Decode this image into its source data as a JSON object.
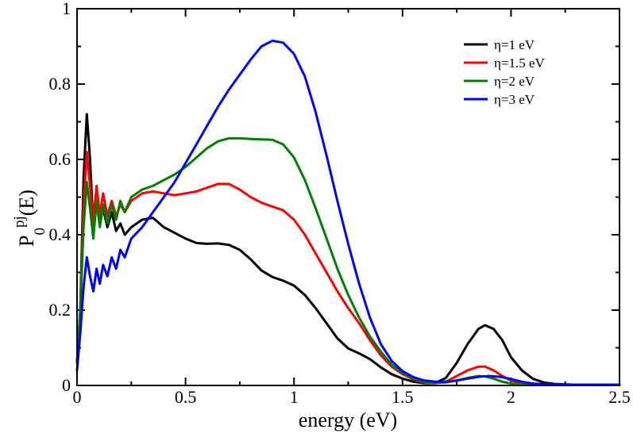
{
  "chart_data": {
    "type": "line",
    "title": "",
    "xlabel": "energy (eV)",
    "ylabel": {
      "base": "P",
      "sub": "0",
      "sup": "pj",
      "arg": "(E)"
    },
    "xlim": [
      0,
      2.5
    ],
    "ylim": [
      0,
      1
    ],
    "xticks": [
      0,
      0.5,
      1,
      1.5,
      2,
      2.5
    ],
    "xtick_labels": [
      "0",
      "0.5",
      "1",
      "1.5",
      "2",
      "2.5"
    ],
    "yticks": [
      0,
      0.2,
      0.4,
      0.6,
      0.8,
      1
    ],
    "ytick_labels": [
      "0",
      "0.2",
      "0.4",
      "0.6",
      "0.8",
      "1"
    ],
    "grid": false,
    "legend_position": "top-right",
    "series": [
      {
        "name": "η=1 eV",
        "color": "#000000",
        "points": [
          [
            0,
            0.06
          ],
          [
            0.015,
            0.2
          ],
          [
            0.03,
            0.55
          ],
          [
            0.045,
            0.72
          ],
          [
            0.06,
            0.6
          ],
          [
            0.075,
            0.42
          ],
          [
            0.09,
            0.48
          ],
          [
            0.105,
            0.43
          ],
          [
            0.12,
            0.47
          ],
          [
            0.14,
            0.42
          ],
          [
            0.16,
            0.46
          ],
          [
            0.18,
            0.41
          ],
          [
            0.2,
            0.43
          ],
          [
            0.22,
            0.4
          ],
          [
            0.25,
            0.42
          ],
          [
            0.3,
            0.44
          ],
          [
            0.35,
            0.445
          ],
          [
            0.4,
            0.42
          ],
          [
            0.45,
            0.405
          ],
          [
            0.5,
            0.39
          ],
          [
            0.55,
            0.378
          ],
          [
            0.6,
            0.376
          ],
          [
            0.65,
            0.377
          ],
          [
            0.7,
            0.373
          ],
          [
            0.75,
            0.36
          ],
          [
            0.8,
            0.335
          ],
          [
            0.85,
            0.305
          ],
          [
            0.9,
            0.288
          ],
          [
            0.95,
            0.278
          ],
          [
            1.0,
            0.265
          ],
          [
            1.05,
            0.24
          ],
          [
            1.1,
            0.205
          ],
          [
            1.15,
            0.165
          ],
          [
            1.2,
            0.125
          ],
          [
            1.25,
            0.098
          ],
          [
            1.3,
            0.085
          ],
          [
            1.35,
            0.07
          ],
          [
            1.4,
            0.048
          ],
          [
            1.45,
            0.03
          ],
          [
            1.5,
            0.018
          ],
          [
            1.55,
            0.01
          ],
          [
            1.6,
            0.006
          ],
          [
            1.65,
            0.006
          ],
          [
            1.7,
            0.02
          ],
          [
            1.75,
            0.06
          ],
          [
            1.8,
            0.11
          ],
          [
            1.85,
            0.15
          ],
          [
            1.88,
            0.16
          ],
          [
            1.92,
            0.15
          ],
          [
            1.96,
            0.12
          ],
          [
            2.0,
            0.075
          ],
          [
            2.05,
            0.04
          ],
          [
            2.1,
            0.018
          ],
          [
            2.15,
            0.008
          ],
          [
            2.2,
            0.004
          ],
          [
            2.3,
            0.002
          ],
          [
            2.4,
            0.002
          ],
          [
            2.5,
            0.002
          ]
        ]
      },
      {
        "name": "η=1.5 eV",
        "color": "#ff0000",
        "points": [
          [
            0,
            0.06
          ],
          [
            0.015,
            0.2
          ],
          [
            0.03,
            0.48
          ],
          [
            0.045,
            0.62
          ],
          [
            0.06,
            0.53
          ],
          [
            0.075,
            0.43
          ],
          [
            0.09,
            0.53
          ],
          [
            0.105,
            0.45
          ],
          [
            0.12,
            0.51
          ],
          [
            0.14,
            0.45
          ],
          [
            0.16,
            0.49
          ],
          [
            0.18,
            0.45
          ],
          [
            0.2,
            0.48
          ],
          [
            0.22,
            0.46
          ],
          [
            0.25,
            0.49
          ],
          [
            0.3,
            0.51
          ],
          [
            0.35,
            0.515
          ],
          [
            0.4,
            0.51
          ],
          [
            0.45,
            0.505
          ],
          [
            0.5,
            0.51
          ],
          [
            0.55,
            0.515
          ],
          [
            0.6,
            0.525
          ],
          [
            0.65,
            0.535
          ],
          [
            0.7,
            0.535
          ],
          [
            0.75,
            0.52
          ],
          [
            0.8,
            0.5
          ],
          [
            0.85,
            0.485
          ],
          [
            0.9,
            0.475
          ],
          [
            0.95,
            0.465
          ],
          [
            1.0,
            0.44
          ],
          [
            1.05,
            0.4
          ],
          [
            1.1,
            0.35
          ],
          [
            1.15,
            0.3
          ],
          [
            1.2,
            0.25
          ],
          [
            1.25,
            0.205
          ],
          [
            1.3,
            0.165
          ],
          [
            1.35,
            0.12
          ],
          [
            1.4,
            0.08
          ],
          [
            1.45,
            0.05
          ],
          [
            1.5,
            0.03
          ],
          [
            1.55,
            0.016
          ],
          [
            1.6,
            0.008
          ],
          [
            1.65,
            0.006
          ],
          [
            1.7,
            0.01
          ],
          [
            1.75,
            0.025
          ],
          [
            1.8,
            0.04
          ],
          [
            1.85,
            0.05
          ],
          [
            1.88,
            0.05
          ],
          [
            1.92,
            0.04
          ],
          [
            1.96,
            0.025
          ],
          [
            2.0,
            0.013
          ],
          [
            2.05,
            0.006
          ],
          [
            2.1,
            0.003
          ],
          [
            2.2,
            0.002
          ],
          [
            2.3,
            0.002
          ],
          [
            2.5,
            0.002
          ]
        ]
      },
      {
        "name": "η=2 eV",
        "color": "#008000",
        "points": [
          [
            0,
            0.06
          ],
          [
            0.015,
            0.2
          ],
          [
            0.03,
            0.42
          ],
          [
            0.045,
            0.54
          ],
          [
            0.06,
            0.47
          ],
          [
            0.075,
            0.39
          ],
          [
            0.09,
            0.49
          ],
          [
            0.105,
            0.42
          ],
          [
            0.12,
            0.48
          ],
          [
            0.14,
            0.43
          ],
          [
            0.16,
            0.48
          ],
          [
            0.18,
            0.44
          ],
          [
            0.2,
            0.49
          ],
          [
            0.22,
            0.46
          ],
          [
            0.25,
            0.5
          ],
          [
            0.3,
            0.52
          ],
          [
            0.35,
            0.53
          ],
          [
            0.4,
            0.545
          ],
          [
            0.45,
            0.56
          ],
          [
            0.5,
            0.58
          ],
          [
            0.55,
            0.605
          ],
          [
            0.6,
            0.63
          ],
          [
            0.65,
            0.648
          ],
          [
            0.7,
            0.656
          ],
          [
            0.75,
            0.656
          ],
          [
            0.8,
            0.654
          ],
          [
            0.85,
            0.653
          ],
          [
            0.9,
            0.652
          ],
          [
            0.95,
            0.64
          ],
          [
            1.0,
            0.605
          ],
          [
            1.05,
            0.545
          ],
          [
            1.1,
            0.47
          ],
          [
            1.15,
            0.39
          ],
          [
            1.2,
            0.31
          ],
          [
            1.25,
            0.24
          ],
          [
            1.3,
            0.18
          ],
          [
            1.35,
            0.13
          ],
          [
            1.4,
            0.09
          ],
          [
            1.45,
            0.055
          ],
          [
            1.5,
            0.033
          ],
          [
            1.55,
            0.018
          ],
          [
            1.6,
            0.01
          ],
          [
            1.65,
            0.007
          ],
          [
            1.7,
            0.008
          ],
          [
            1.75,
            0.013
          ],
          [
            1.8,
            0.02
          ],
          [
            1.85,
            0.025
          ],
          [
            1.88,
            0.024
          ],
          [
            1.92,
            0.018
          ],
          [
            1.96,
            0.01
          ],
          [
            2.0,
            0.005
          ],
          [
            2.1,
            0.002
          ],
          [
            2.3,
            0.002
          ],
          [
            2.5,
            0.002
          ]
        ]
      },
      {
        "name": "η=3 eV",
        "color": "#0000ff",
        "points": [
          [
            0,
            0.04
          ],
          [
            0.015,
            0.14
          ],
          [
            0.03,
            0.26
          ],
          [
            0.045,
            0.34
          ],
          [
            0.06,
            0.29
          ],
          [
            0.075,
            0.25
          ],
          [
            0.09,
            0.31
          ],
          [
            0.105,
            0.27
          ],
          [
            0.12,
            0.32
          ],
          [
            0.14,
            0.29
          ],
          [
            0.16,
            0.34
          ],
          [
            0.18,
            0.31
          ],
          [
            0.2,
            0.36
          ],
          [
            0.22,
            0.34
          ],
          [
            0.25,
            0.39
          ],
          [
            0.3,
            0.42
          ],
          [
            0.35,
            0.46
          ],
          [
            0.4,
            0.5
          ],
          [
            0.45,
            0.54
          ],
          [
            0.5,
            0.59
          ],
          [
            0.55,
            0.64
          ],
          [
            0.6,
            0.69
          ],
          [
            0.65,
            0.74
          ],
          [
            0.7,
            0.785
          ],
          [
            0.75,
            0.825
          ],
          [
            0.8,
            0.865
          ],
          [
            0.85,
            0.9
          ],
          [
            0.9,
            0.915
          ],
          [
            0.95,
            0.91
          ],
          [
            1.0,
            0.88
          ],
          [
            1.05,
            0.82
          ],
          [
            1.1,
            0.725
          ],
          [
            1.15,
            0.61
          ],
          [
            1.2,
            0.49
          ],
          [
            1.25,
            0.375
          ],
          [
            1.3,
            0.27
          ],
          [
            1.35,
            0.18
          ],
          [
            1.4,
            0.11
          ],
          [
            1.45,
            0.065
          ],
          [
            1.5,
            0.038
          ],
          [
            1.55,
            0.022
          ],
          [
            1.6,
            0.013
          ],
          [
            1.65,
            0.01
          ],
          [
            1.7,
            0.01
          ],
          [
            1.75,
            0.013
          ],
          [
            1.8,
            0.018
          ],
          [
            1.85,
            0.023
          ],
          [
            1.9,
            0.025
          ],
          [
            1.95,
            0.023
          ],
          [
            2.0,
            0.017
          ],
          [
            2.05,
            0.01
          ],
          [
            2.1,
            0.005
          ],
          [
            2.2,
            0.002
          ],
          [
            2.3,
            0.002
          ],
          [
            2.5,
            0.002
          ]
        ]
      }
    ]
  }
}
